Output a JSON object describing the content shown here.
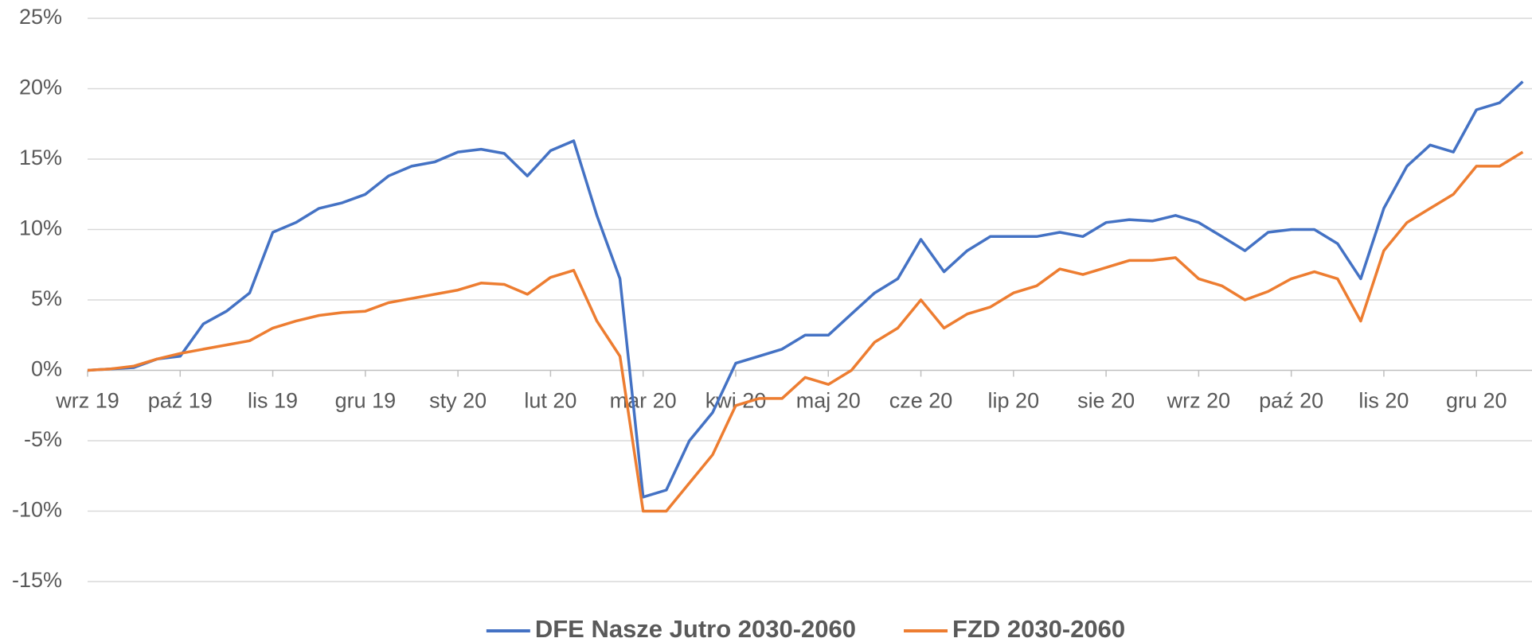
{
  "chart_data": {
    "type": "line",
    "x": [
      "wrz 19",
      null,
      null,
      null,
      "paź 19",
      null,
      null,
      null,
      "lis 19",
      null,
      null,
      null,
      "gru 19",
      null,
      null,
      null,
      "sty 20",
      null,
      null,
      null,
      "lut 20",
      null,
      null,
      null,
      "mar 20",
      null,
      null,
      null,
      "kwi 20",
      null,
      null,
      null,
      "maj 20",
      null,
      null,
      null,
      "cze 20",
      null,
      null,
      null,
      "lip 20",
      null,
      null,
      null,
      "sie 20",
      null,
      null,
      null,
      "wrz 20",
      null,
      null,
      null,
      "paź 20",
      null,
      null,
      null,
      "lis 20",
      null,
      null,
      null,
      "gru 20",
      null,
      null
    ],
    "series": [
      {
        "name": "DFE Nasze Jutro 2030-2060",
        "color": "#4472c4",
        "values": [
          0,
          0.1,
          0.2,
          0.8,
          1.0,
          3.3,
          4.2,
          5.5,
          9.8,
          10.5,
          11.5,
          11.9,
          12.5,
          13.8,
          14.5,
          14.8,
          15.5,
          15.7,
          15.4,
          13.8,
          15.6,
          16.3,
          11,
          6.5,
          -9,
          -8.5,
          -5,
          -3,
          0.5,
          1,
          1.5,
          2.5,
          2.5,
          4,
          5.5,
          6.5,
          9.3,
          7,
          8.5,
          9.5,
          9.5,
          9.5,
          9.8,
          9.5,
          10.5,
          10.7,
          10.6,
          11,
          10.5,
          9.5,
          8.5,
          9.8,
          10,
          10,
          9,
          6.5,
          11.5,
          14.5,
          16,
          15.5,
          18.5,
          19,
          20.5
        ]
      },
      {
        "name": "FZD 2030-2060",
        "color": "#ed7d31",
        "values": [
          0,
          0.1,
          0.3,
          0.8,
          1.2,
          1.5,
          1.8,
          2.1,
          3.0,
          3.5,
          3.9,
          4.1,
          4.2,
          4.8,
          5.1,
          5.4,
          5.7,
          6.2,
          6.1,
          5.4,
          6.6,
          7.1,
          3.5,
          1.0,
          -10,
          -10,
          -8,
          -6,
          -2.5,
          -2,
          -2,
          -0.5,
          -1,
          0,
          2,
          3,
          5,
          3,
          4,
          4.5,
          5.5,
          6.0,
          7.2,
          6.8,
          7.3,
          7.8,
          7.8,
          8,
          6.5,
          6.0,
          5.0,
          5.6,
          6.5,
          7,
          6.5,
          3.5,
          8.5,
          10.5,
          11.5,
          12.5,
          14.5,
          14.5,
          15.5
        ]
      }
    ],
    "ylim": [
      -15,
      25
    ],
    "yticks": [
      {
        "value": -15,
        "label": "-15%"
      },
      {
        "value": -10,
        "label": "-10%"
      },
      {
        "value": -5,
        "label": "-5%"
      },
      {
        "value": 0,
        "label": "0%"
      },
      {
        "value": 5,
        "label": "5%"
      },
      {
        "value": 10,
        "label": "10%"
      },
      {
        "value": 15,
        "label": "15%"
      },
      {
        "value": 20,
        "label": "20%"
      },
      {
        "value": 25,
        "label": "25%"
      }
    ],
    "grid": true,
    "legend": "bottom"
  }
}
